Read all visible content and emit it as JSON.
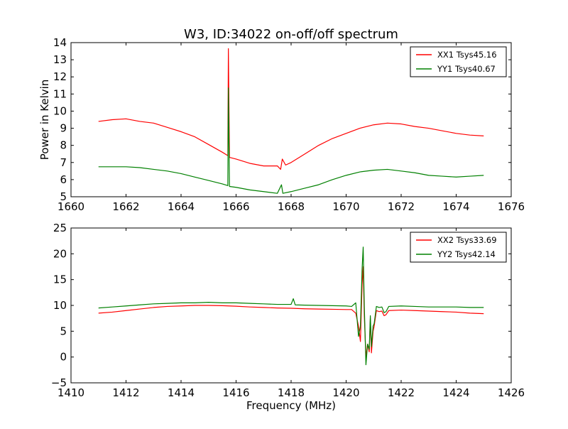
{
  "figure": {
    "title": "W3, ID:34022 on-off/off spectrum"
  },
  "chart_data": [
    {
      "type": "line",
      "title": "W3, ID:34022 on-off/off spectrum",
      "xlabel": "",
      "ylabel": "Power in Kelvin",
      "xlim": [
        1660,
        1676
      ],
      "ylim": [
        5,
        14
      ],
      "xticks": [
        1660,
        1662,
        1664,
        1666,
        1668,
        1670,
        1672,
        1674,
        1676
      ],
      "yticks": [
        5,
        6,
        7,
        8,
        9,
        10,
        11,
        12,
        13,
        14
      ],
      "grid": false,
      "legend": "top-right",
      "series": [
        {
          "name": "XX1 Tsys45.16",
          "color": "#ff0000",
          "points": [
            [
              1661.0,
              9.4
            ],
            [
              1661.5,
              9.5
            ],
            [
              1662.0,
              9.55
            ],
            [
              1662.5,
              9.4
            ],
            [
              1663.0,
              9.3
            ],
            [
              1663.5,
              9.05
            ],
            [
              1664.0,
              8.8
            ],
            [
              1664.5,
              8.5
            ],
            [
              1665.0,
              8.05
            ],
            [
              1665.5,
              7.6
            ],
            [
              1665.7,
              7.4
            ],
            [
              1665.72,
              13.65
            ],
            [
              1665.76,
              7.3
            ],
            [
              1666.0,
              7.2
            ],
            [
              1666.5,
              6.95
            ],
            [
              1667.0,
              6.8
            ],
            [
              1667.5,
              6.8
            ],
            [
              1667.62,
              6.6
            ],
            [
              1667.68,
              7.2
            ],
            [
              1667.8,
              6.85
            ],
            [
              1668.0,
              7.0
            ],
            [
              1668.5,
              7.5
            ],
            [
              1669.0,
              8.0
            ],
            [
              1669.5,
              8.4
            ],
            [
              1670.0,
              8.7
            ],
            [
              1670.5,
              9.0
            ],
            [
              1671.0,
              9.2
            ],
            [
              1671.5,
              9.3
            ],
            [
              1672.0,
              9.25
            ],
            [
              1672.5,
              9.1
            ],
            [
              1673.0,
              9.0
            ],
            [
              1673.5,
              8.85
            ],
            [
              1674.0,
              8.7
            ],
            [
              1674.5,
              8.6
            ],
            [
              1675.0,
              8.55
            ]
          ]
        },
        {
          "name": "YY1 Tsys40.67",
          "color": "#008000",
          "points": [
            [
              1661.0,
              6.75
            ],
            [
              1661.5,
              6.75
            ],
            [
              1662.0,
              6.75
            ],
            [
              1662.5,
              6.7
            ],
            [
              1663.0,
              6.6
            ],
            [
              1663.5,
              6.5
            ],
            [
              1664.0,
              6.35
            ],
            [
              1664.5,
              6.15
            ],
            [
              1665.0,
              5.95
            ],
            [
              1665.5,
              5.75
            ],
            [
              1665.7,
              5.65
            ],
            [
              1665.72,
              11.35
            ],
            [
              1665.76,
              5.6
            ],
            [
              1666.0,
              5.55
            ],
            [
              1666.5,
              5.4
            ],
            [
              1667.0,
              5.3
            ],
            [
              1667.5,
              5.2
            ],
            [
              1667.65,
              5.7
            ],
            [
              1667.7,
              5.2
            ],
            [
              1668.0,
              5.3
            ],
            [
              1668.5,
              5.5
            ],
            [
              1669.0,
              5.7
            ],
            [
              1669.5,
              6.0
            ],
            [
              1670.0,
              6.25
            ],
            [
              1670.5,
              6.45
            ],
            [
              1671.0,
              6.55
            ],
            [
              1671.5,
              6.6
            ],
            [
              1672.0,
              6.5
            ],
            [
              1672.5,
              6.4
            ],
            [
              1673.0,
              6.25
            ],
            [
              1673.5,
              6.2
            ],
            [
              1674.0,
              6.15
            ],
            [
              1674.5,
              6.2
            ],
            [
              1675.0,
              6.25
            ]
          ]
        }
      ]
    },
    {
      "type": "line",
      "title": "",
      "xlabel": "Frequency (MHz)",
      "ylabel": "",
      "xlim": [
        1410,
        1426
      ],
      "ylim": [
        -5,
        25
      ],
      "xticks": [
        1410,
        1412,
        1414,
        1416,
        1418,
        1420,
        1422,
        1424,
        1426
      ],
      "yticks": [
        -5,
        0,
        5,
        10,
        15,
        20,
        25
      ],
      "grid": false,
      "legend": "top-right",
      "series": [
        {
          "name": "XX2 Tsys33.69",
          "color": "#ff0000",
          "points": [
            [
              1411.0,
              8.5
            ],
            [
              1411.5,
              8.7
            ],
            [
              1412.0,
              9.0
            ],
            [
              1412.5,
              9.3
            ],
            [
              1413.0,
              9.6
            ],
            [
              1413.5,
              9.8
            ],
            [
              1414.0,
              9.9
            ],
            [
              1414.5,
              10.0
            ],
            [
              1415.0,
              10.0
            ],
            [
              1415.5,
              9.95
            ],
            [
              1416.0,
              9.85
            ],
            [
              1416.5,
              9.7
            ],
            [
              1417.0,
              9.6
            ],
            [
              1417.5,
              9.5
            ],
            [
              1418.0,
              9.45
            ],
            [
              1418.5,
              9.35
            ],
            [
              1419.0,
              9.3
            ],
            [
              1419.5,
              9.25
            ],
            [
              1420.0,
              9.2
            ],
            [
              1420.2,
              9.2
            ],
            [
              1420.35,
              8.5
            ],
            [
              1420.45,
              6.0
            ],
            [
              1420.52,
              3.0
            ],
            [
              1420.58,
              14.0
            ],
            [
              1420.62,
              17.5
            ],
            [
              1420.66,
              8.0
            ],
            [
              1420.72,
              0.0
            ],
            [
              1420.78,
              2.5
            ],
            [
              1420.84,
              1.0
            ],
            [
              1420.88,
              7.5
            ],
            [
              1420.92,
              0.8
            ],
            [
              1420.98,
              5.0
            ],
            [
              1421.02,
              6.0
            ],
            [
              1421.1,
              9.0
            ],
            [
              1421.2,
              8.8
            ],
            [
              1421.3,
              8.9
            ],
            [
              1421.38,
              8.0
            ],
            [
              1421.45,
              8.2
            ],
            [
              1421.55,
              9.0
            ],
            [
              1422.0,
              9.1
            ],
            [
              1422.5,
              9.0
            ],
            [
              1423.0,
              8.9
            ],
            [
              1423.5,
              8.8
            ],
            [
              1424.0,
              8.7
            ],
            [
              1424.5,
              8.5
            ],
            [
              1425.0,
              8.4
            ]
          ]
        },
        {
          "name": "YY2 Tsys42.14",
          "color": "#008000",
          "points": [
            [
              1411.0,
              9.5
            ],
            [
              1411.5,
              9.7
            ],
            [
              1412.0,
              9.9
            ],
            [
              1412.5,
              10.1
            ],
            [
              1413.0,
              10.3
            ],
            [
              1413.5,
              10.4
            ],
            [
              1414.0,
              10.5
            ],
            [
              1414.5,
              10.5
            ],
            [
              1415.0,
              10.6
            ],
            [
              1415.5,
              10.5
            ],
            [
              1416.0,
              10.5
            ],
            [
              1416.5,
              10.4
            ],
            [
              1417.0,
              10.3
            ],
            [
              1417.5,
              10.2
            ],
            [
              1418.0,
              10.2
            ],
            [
              1418.08,
              11.3
            ],
            [
              1418.15,
              10.1
            ],
            [
              1418.5,
              10.05
            ],
            [
              1419.0,
              10.0
            ],
            [
              1419.5,
              9.95
            ],
            [
              1420.0,
              9.9
            ],
            [
              1420.2,
              9.8
            ],
            [
              1420.35,
              10.5
            ],
            [
              1420.45,
              4.0
            ],
            [
              1420.52,
              6.0
            ],
            [
              1420.58,
              17.0
            ],
            [
              1420.62,
              21.3
            ],
            [
              1420.66,
              10.0
            ],
            [
              1420.72,
              -1.5
            ],
            [
              1420.78,
              2.5
            ],
            [
              1420.84,
              1.5
            ],
            [
              1420.88,
              8.0
            ],
            [
              1420.92,
              2.0
            ],
            [
              1420.98,
              6.0
            ],
            [
              1421.02,
              6.5
            ],
            [
              1421.1,
              9.8
            ],
            [
              1421.2,
              9.6
            ],
            [
              1421.3,
              9.7
            ],
            [
              1421.38,
              8.6
            ],
            [
              1421.45,
              8.8
            ],
            [
              1421.55,
              9.8
            ],
            [
              1422.0,
              9.9
            ],
            [
              1422.5,
              9.8
            ],
            [
              1423.0,
              9.7
            ],
            [
              1423.5,
              9.7
            ],
            [
              1424.0,
              9.7
            ],
            [
              1424.5,
              9.6
            ],
            [
              1425.0,
              9.6
            ]
          ]
        }
      ]
    }
  ]
}
